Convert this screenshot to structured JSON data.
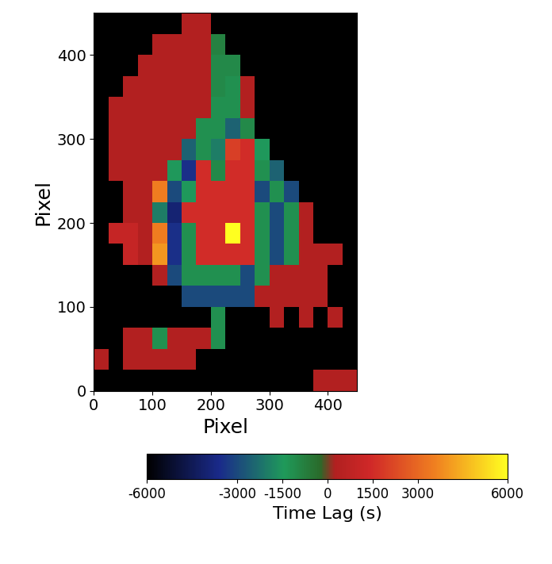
{
  "chart_data": {
    "type": "heatmap",
    "x_label": "Pixel",
    "y_label": "Pixel",
    "xlim": [
      0,
      450
    ],
    "ylim": [
      0,
      450
    ],
    "xticks": [
      0,
      100,
      200,
      300,
      400
    ],
    "yticks": [
      0,
      100,
      200,
      300,
      400
    ],
    "colorbar_label": "Time Lag (s)",
    "colorbar_range": [
      -6000,
      6000
    ],
    "colorbar_ticks": [
      -6000,
      -3000,
      -1500,
      0,
      1500,
      3000,
      6000
    ],
    "cells": [
      [
        null,
        null,
        null,
        null,
        null,
        null,
        null,
        null,
        null,
        null,
        null,
        null,
        null,
        null,
        null,
        300,
        300,
        300
      ],
      [
        300,
        null,
        300,
        300,
        300,
        300,
        300,
        null,
        null,
        null,
        null,
        null,
        null,
        null,
        null,
        null,
        null,
        null
      ],
      [
        null,
        null,
        300,
        300,
        -1200,
        300,
        300,
        300,
        -1200,
        null,
        null,
        null,
        null,
        null,
        null,
        null,
        null,
        null
      ],
      [
        null,
        null,
        null,
        null,
        null,
        null,
        null,
        null,
        -1200,
        null,
        null,
        null,
        300,
        null,
        300,
        null,
        300,
        null
      ],
      [
        null,
        null,
        null,
        null,
        null,
        null,
        -3000,
        -3000,
        -3000,
        -3000,
        -3000,
        300,
        300,
        300,
        300,
        300,
        null,
        null
      ],
      [
        null,
        null,
        null,
        null,
        300,
        -3000,
        -1200,
        -1200,
        -1200,
        -1200,
        -3000,
        -1200,
        300,
        300,
        300,
        300,
        null,
        null
      ],
      [
        null,
        null,
        1000,
        300,
        4000,
        -3500,
        -1200,
        1500,
        1500,
        1500,
        1500,
        -1200,
        -3000,
        -1200,
        300,
        300,
        300,
        null
      ],
      [
        null,
        1000,
        1000,
        300,
        3500,
        -3500,
        -1200,
        1500,
        1500,
        6000,
        1500,
        -1200,
        -3000,
        -1200,
        300,
        null,
        null,
        null
      ],
      [
        null,
        null,
        300,
        300,
        -2000,
        -4000,
        1500,
        1500,
        1500,
        1500,
        1500,
        -1200,
        -3000,
        -1200,
        300,
        null,
        null,
        null
      ],
      [
        null,
        null,
        300,
        300,
        3500,
        -3000,
        -1500,
        1500,
        1500,
        1500,
        1500,
        -3000,
        -1200,
        -3000,
        null,
        null,
        null,
        null
      ],
      [
        null,
        300,
        300,
        300,
        300,
        -1500,
        -3500,
        1500,
        -1000,
        1500,
        1500,
        -1200,
        -2500,
        null,
        null,
        null,
        null,
        null
      ],
      [
        null,
        300,
        300,
        300,
        300,
        300,
        -2500,
        -1200,
        -2000,
        2000,
        1500,
        -1500,
        null,
        null,
        null,
        null,
        null,
        null
      ],
      [
        null,
        300,
        300,
        300,
        300,
        300,
        300,
        -1200,
        -1200,
        -2500,
        -1000,
        null,
        null,
        null,
        null,
        null,
        null,
        null
      ],
      [
        null,
        300,
        300,
        300,
        300,
        300,
        300,
        300,
        -1200,
        -1200,
        300,
        null,
        null,
        null,
        null,
        null,
        null,
        null
      ],
      [
        null,
        null,
        300,
        300,
        300,
        300,
        300,
        300,
        -1000,
        -1200,
        300,
        null,
        null,
        null,
        null,
        null,
        null,
        null
      ],
      [
        null,
        null,
        null,
        300,
        300,
        300,
        300,
        300,
        -1000,
        -1000,
        null,
        null,
        null,
        null,
        null,
        null,
        null,
        null
      ],
      [
        null,
        null,
        null,
        null,
        300,
        300,
        300,
        300,
        -800,
        null,
        null,
        null,
        null,
        null,
        null,
        null,
        null,
        null
      ],
      [
        null,
        null,
        null,
        null,
        null,
        null,
        300,
        300,
        null,
        null,
        null,
        null,
        null,
        null,
        null,
        null,
        null,
        null
      ]
    ]
  }
}
